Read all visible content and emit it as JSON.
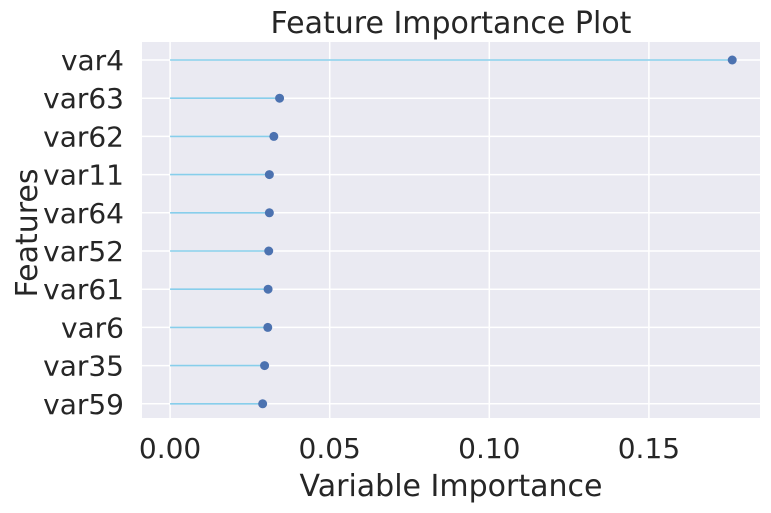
{
  "chart_data": {
    "type": "lollipop",
    "title": "Feature Importance Plot",
    "xlabel": "Variable Importance",
    "ylabel": "Features",
    "xlim": [
      -0.0088,
      0.1848
    ],
    "xticks": [
      0.0,
      0.05,
      0.1,
      0.15
    ],
    "xtick_labels": [
      "0.00",
      "0.05",
      "0.10",
      "0.15"
    ],
    "grid": true,
    "categories": [
      "var4",
      "var63",
      "var62",
      "var11",
      "var64",
      "var52",
      "var61",
      "var6",
      "var35",
      "var59"
    ],
    "values": [
      0.1761,
      0.0343,
      0.0325,
      0.0311,
      0.0311,
      0.0309,
      0.0307,
      0.0306,
      0.0296,
      0.029
    ],
    "colors": {
      "background": "#eaeaf2",
      "grid": "#ffffff",
      "stem": "#87ceeb",
      "marker": "#4c72b0"
    }
  }
}
